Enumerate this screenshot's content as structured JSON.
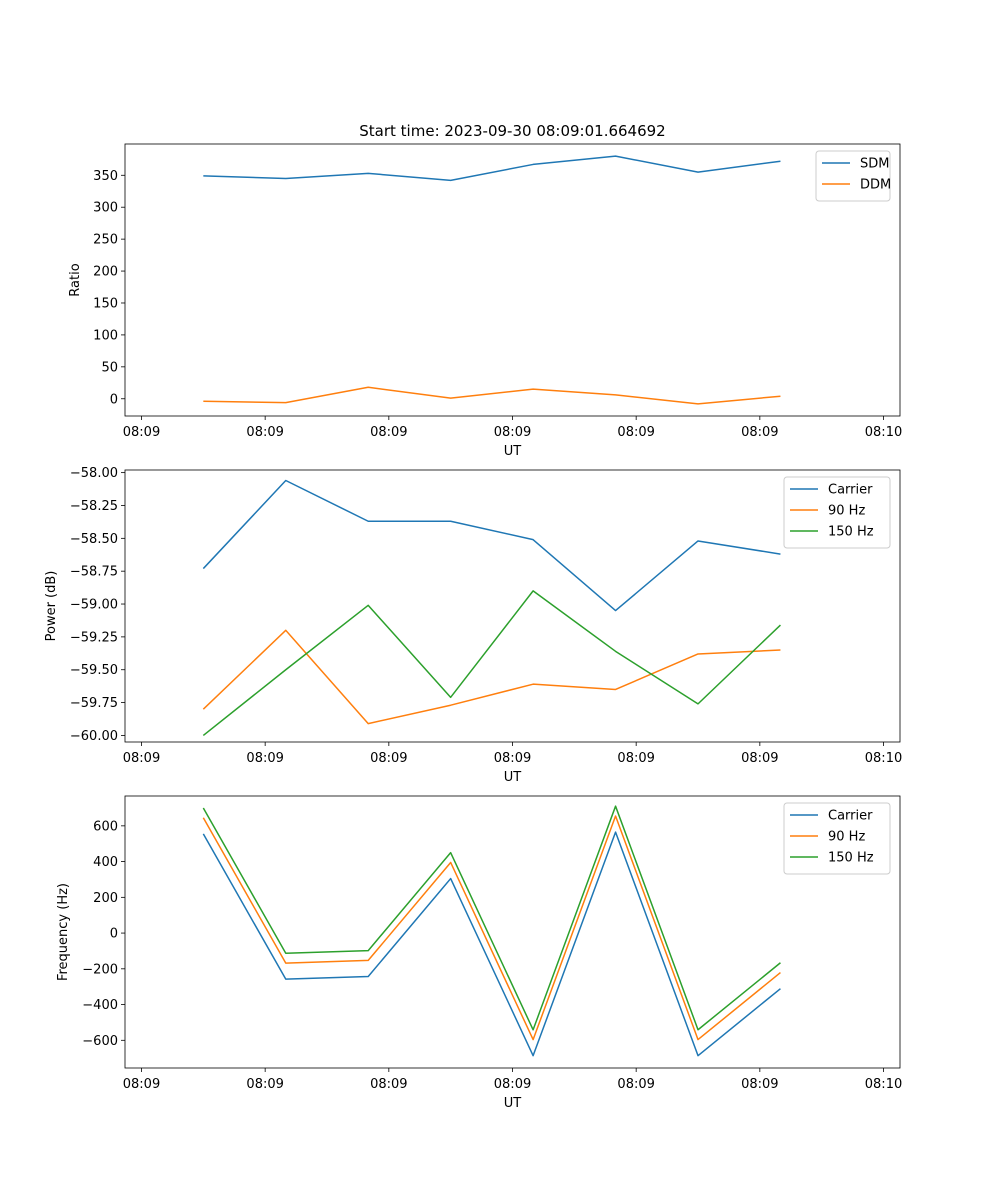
{
  "figure_title": "Start time: 2023-09-30 08:09:01.664692",
  "colors": {
    "blue": "#1f77b4",
    "orange": "#ff7f0e",
    "green": "#2ca02c"
  },
  "chart_data": [
    {
      "type": "line",
      "title": "Start time: 2023-09-30 08:09:01.664692",
      "xlabel": "UT",
      "ylabel": "Ratio",
      "x": [
        0.75,
        1.75,
        2.75,
        3.75,
        4.75,
        5.75,
        6.75,
        7.75
      ],
      "xlim": [
        -0.2,
        9.2
      ],
      "xticks": [
        0,
        1.5,
        3,
        4.5,
        6,
        7.5,
        9
      ],
      "xtick_labels": [
        "08:09",
        "08:09",
        "08:09",
        "08:09",
        "08:09",
        "08:09",
        "08:10"
      ],
      "ylim": [
        -27,
        399
      ],
      "yticks": [
        0,
        50,
        100,
        150,
        200,
        250,
        300,
        350
      ],
      "ytick_labels": [
        "0",
        "50",
        "100",
        "150",
        "200",
        "250",
        "300",
        "350"
      ],
      "legend_position": "top-right",
      "series": [
        {
          "name": "SDM",
          "color": "#1f77b4",
          "values": [
            349,
            345,
            353,
            342,
            367,
            380,
            355,
            372
          ]
        },
        {
          "name": "DDM",
          "color": "#ff7f0e",
          "values": [
            -4,
            -6,
            18,
            1,
            15,
            6,
            -8,
            4
          ]
        }
      ]
    },
    {
      "type": "line",
      "title": "",
      "xlabel": "UT",
      "ylabel": "Power (dB)",
      "x": [
        0.75,
        1.75,
        2.75,
        3.75,
        4.75,
        5.75,
        6.75,
        7.75
      ],
      "xlim": [
        -0.2,
        9.2
      ],
      "xticks": [
        0,
        1.5,
        3,
        4.5,
        6,
        7.5,
        9
      ],
      "xtick_labels": [
        "08:09",
        "08:09",
        "08:09",
        "08:09",
        "08:09",
        "08:09",
        "08:10"
      ],
      "ylim": [
        -60.05,
        -57.98
      ],
      "yticks": [
        -60.0,
        -59.75,
        -59.5,
        -59.25,
        -59.0,
        -58.75,
        -58.5,
        -58.25,
        -58.0
      ],
      "ytick_labels": [
        "−60.00",
        "−59.75",
        "−59.50",
        "−59.25",
        "−59.00",
        "−58.75",
        "−58.50",
        "−58.25",
        "−58.00"
      ],
      "legend_position": "top-right",
      "series": [
        {
          "name": "Carrier",
          "color": "#1f77b4",
          "values": [
            -58.73,
            -58.06,
            -58.37,
            -58.37,
            -58.51,
            -59.05,
            -58.52,
            -58.62
          ]
        },
        {
          "name": "90 Hz",
          "color": "#ff7f0e",
          "values": [
            -59.8,
            -59.2,
            -59.91,
            -59.77,
            -59.61,
            -59.65,
            -59.38,
            -59.35
          ]
        },
        {
          "name": "150 Hz",
          "color": "#2ca02c",
          "values": [
            -60.0,
            -59.5,
            -59.01,
            -59.71,
            -58.9,
            -59.36,
            -59.76,
            -59.16
          ]
        }
      ]
    },
    {
      "type": "line",
      "title": "",
      "xlabel": "UT",
      "ylabel": "Frequency (Hz)",
      "x": [
        0.75,
        1.75,
        2.75,
        3.75,
        4.75,
        5.75,
        6.75,
        7.75
      ],
      "xlim": [
        -0.2,
        9.2
      ],
      "xticks": [
        0,
        1.5,
        3,
        4.5,
        6,
        7.5,
        9
      ],
      "xtick_labels": [
        "08:09",
        "08:09",
        "08:09",
        "08:09",
        "08:09",
        "08:09",
        "08:10"
      ],
      "ylim": [
        -755,
        767
      ],
      "yticks": [
        -600,
        -400,
        -200,
        0,
        200,
        400,
        600
      ],
      "ytick_labels": [
        "−600",
        "−400",
        "−200",
        "0",
        "200",
        "400",
        "600"
      ],
      "legend_position": "top-right",
      "series": [
        {
          "name": "Carrier",
          "color": "#1f77b4",
          "values": [
            555,
            -258,
            -243,
            305,
            -686,
            565,
            -686,
            -311
          ]
        },
        {
          "name": "90 Hz",
          "color": "#ff7f0e",
          "values": [
            645,
            -168,
            -153,
            395,
            -596,
            655,
            -596,
            -221
          ]
        },
        {
          "name": "150 Hz",
          "color": "#2ca02c",
          "values": [
            700,
            -113,
            -98,
            450,
            -541,
            710,
            -541,
            -166
          ]
        }
      ]
    }
  ]
}
